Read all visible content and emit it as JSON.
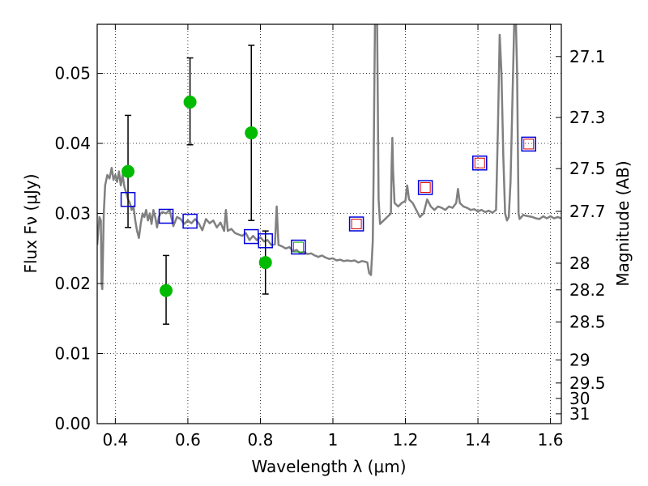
{
  "chart_data": {
    "type": "scatter",
    "xlabel": "Wavelength λ (μm)",
    "ylabel": "Flux Fν (μJy)",
    "y2label": "Magnitude (AB)",
    "xlim": [
      0.35,
      1.63
    ],
    "ylim": [
      0.0,
      0.057
    ],
    "grid": true,
    "x_ticks": [
      0.4,
      0.6,
      0.8,
      1.0,
      1.2,
      1.4,
      1.6
    ],
    "x_tick_labels": [
      "0.4",
      "0.6",
      "0.8",
      "1",
      "1.2",
      "1.4",
      "1.6"
    ],
    "y_ticks": [
      0.0,
      0.01,
      0.02,
      0.03,
      0.04,
      0.05
    ],
    "y_tick_labels": [
      "0.00",
      "0.01",
      "0.02",
      "0.03",
      "0.04",
      "0.05"
    ],
    "mag_ticks": [
      {
        "label": "27.1",
        "flux": 0.0524
      },
      {
        "label": "27.3",
        "flux": 0.0437
      },
      {
        "label": "27.5",
        "flux": 0.0364
      },
      {
        "label": "27.7",
        "flux": 0.0303
      },
      {
        "label": "28",
        "flux": 0.0229
      },
      {
        "label": "28.2",
        "flux": 0.0191
      },
      {
        "label": "28.5",
        "flux": 0.0145
      },
      {
        "label": "29",
        "flux": 0.0091
      },
      {
        "label": "29.5",
        "flux": 0.0058
      },
      {
        "label": "30",
        "flux": 0.0036
      },
      {
        "label": "31",
        "flux": 0.0014
      }
    ],
    "observed": {
      "color": "#00bb00",
      "points": [
        {
          "x": 0.435,
          "y": 0.036,
          "yerr_low": 0.028,
          "yerr_high": 0.044
        },
        {
          "x": 0.54,
          "y": 0.019,
          "yerr_low": 0.0142,
          "yerr_high": 0.024
        },
        {
          "x": 0.606,
          "y": 0.0459,
          "yerr_low": 0.0398,
          "yerr_high": 0.0522
        },
        {
          "x": 0.775,
          "y": 0.0415,
          "yerr_low": 0.029,
          "yerr_high": 0.054
        },
        {
          "x": 0.814,
          "y": 0.023,
          "yerr_low": 0.0185,
          "yerr_high": 0.0275
        }
      ]
    },
    "model_blue_boxes": {
      "color": "#0000dd",
      "points": [
        {
          "x": 0.435,
          "y": 0.032
        },
        {
          "x": 0.54,
          "y": 0.0296
        },
        {
          "x": 0.606,
          "y": 0.0289
        },
        {
          "x": 0.775,
          "y": 0.0267
        },
        {
          "x": 0.814,
          "y": 0.0261
        },
        {
          "x": 0.905,
          "y": 0.0252
        },
        {
          "x": 1.065,
          "y": 0.0285
        },
        {
          "x": 1.255,
          "y": 0.0337
        },
        {
          "x": 1.405,
          "y": 0.0372
        },
        {
          "x": 1.54,
          "y": 0.0399
        }
      ]
    },
    "model_inner_boxes": [
      {
        "x": 0.905,
        "y": 0.0252,
        "color": "#00aa00"
      },
      {
        "x": 1.065,
        "y": 0.0285,
        "color": "#dd0000"
      },
      {
        "x": 1.255,
        "y": 0.0337,
        "color": "#dd0000"
      },
      {
        "x": 1.405,
        "y": 0.0372,
        "color": "#dd0000"
      },
      {
        "x": 1.54,
        "y": 0.0399,
        "color": "#dd0000"
      }
    ],
    "model_spectrum": {
      "color": "#808080",
      "points": [
        [
          0.35,
          0.0255
        ],
        [
          0.356,
          0.0295
        ],
        [
          0.36,
          0.029
        ],
        [
          0.362,
          0.02
        ],
        [
          0.364,
          0.0192
        ],
        [
          0.368,
          0.03
        ],
        [
          0.372,
          0.034
        ],
        [
          0.378,
          0.0355
        ],
        [
          0.384,
          0.035
        ],
        [
          0.39,
          0.0365
        ],
        [
          0.395,
          0.0348
        ],
        [
          0.4,
          0.0355
        ],
        [
          0.405,
          0.0345
        ],
        [
          0.41,
          0.036
        ],
        [
          0.415,
          0.034
        ],
        [
          0.42,
          0.0355
        ],
        [
          0.425,
          0.0338
        ],
        [
          0.43,
          0.033
        ],
        [
          0.435,
          0.032
        ],
        [
          0.44,
          0.0315
        ],
        [
          0.445,
          0.0305
        ],
        [
          0.45,
          0.031
        ],
        [
          0.455,
          0.029
        ],
        [
          0.46,
          0.0275
        ],
        [
          0.465,
          0.0265
        ],
        [
          0.47,
          0.0285
        ],
        [
          0.475,
          0.03
        ],
        [
          0.48,
          0.0295
        ],
        [
          0.485,
          0.0305
        ],
        [
          0.49,
          0.029
        ],
        [
          0.495,
          0.03
        ],
        [
          0.5,
          0.0285
        ],
        [
          0.505,
          0.0305
        ],
        [
          0.51,
          0.0295
        ],
        [
          0.515,
          0.028
        ],
        [
          0.52,
          0.0295
        ],
        [
          0.525,
          0.03
        ],
        [
          0.53,
          0.0302
        ],
        [
          0.54,
          0.03
        ],
        [
          0.55,
          0.0305
        ],
        [
          0.56,
          0.0282
        ],
        [
          0.57,
          0.0295
        ],
        [
          0.58,
          0.0292
        ],
        [
          0.59,
          0.0285
        ],
        [
          0.6,
          0.029
        ],
        [
          0.61,
          0.0286
        ],
        [
          0.62,
          0.0292
        ],
        [
          0.63,
          0.0286
        ],
        [
          0.64,
          0.0276
        ],
        [
          0.65,
          0.0292
        ],
        [
          0.66,
          0.0286
        ],
        [
          0.67,
          0.029
        ],
        [
          0.68,
          0.028
        ],
        [
          0.69,
          0.0287
        ],
        [
          0.7,
          0.0275
        ],
        [
          0.705,
          0.0305
        ],
        [
          0.71,
          0.0275
        ],
        [
          0.72,
          0.0278
        ],
        [
          0.73,
          0.0272
        ],
        [
          0.74,
          0.027
        ],
        [
          0.75,
          0.0268
        ],
        [
          0.76,
          0.0272
        ],
        [
          0.77,
          0.0262
        ],
        [
          0.78,
          0.0268
        ],
        [
          0.79,
          0.0262
        ],
        [
          0.8,
          0.0266
        ],
        [
          0.81,
          0.026
        ],
        [
          0.82,
          0.0262
        ],
        [
          0.83,
          0.0255
        ],
        [
          0.84,
          0.0256
        ],
        [
          0.845,
          0.031
        ],
        [
          0.85,
          0.0255
        ],
        [
          0.86,
          0.0253
        ],
        [
          0.87,
          0.025
        ],
        [
          0.88,
          0.0252
        ],
        [
          0.89,
          0.0246
        ],
        [
          0.9,
          0.0248
        ],
        [
          0.91,
          0.0243
        ],
        [
          0.92,
          0.0245
        ],
        [
          0.93,
          0.0242
        ],
        [
          0.94,
          0.0243
        ],
        [
          0.95,
          0.024
        ],
        [
          0.96,
          0.0238
        ],
        [
          0.97,
          0.024
        ],
        [
          0.98,
          0.0237
        ],
        [
          0.99,
          0.0235
        ],
        [
          1.0,
          0.0236
        ],
        [
          1.01,
          0.0233
        ],
        [
          1.02,
          0.0234
        ],
        [
          1.03,
          0.0232
        ],
        [
          1.04,
          0.0233
        ],
        [
          1.05,
          0.0232
        ],
        [
          1.06,
          0.0233
        ],
        [
          1.07,
          0.023
        ],
        [
          1.08,
          0.0232
        ],
        [
          1.09,
          0.0231
        ],
        [
          1.095,
          0.023
        ],
        [
          1.1,
          0.0215
        ],
        [
          1.105,
          0.0212
        ],
        [
          1.108,
          0.024
        ],
        [
          1.11,
          0.026
        ],
        [
          1.112,
          0.034
        ],
        [
          1.114,
          0.046
        ],
        [
          1.116,
          0.057
        ],
        [
          1.122,
          0.057
        ],
        [
          1.124,
          0.045
        ],
        [
          1.126,
          0.032
        ],
        [
          1.13,
          0.0285
        ],
        [
          1.14,
          0.029
        ],
        [
          1.15,
          0.0295
        ],
        [
          1.16,
          0.03
        ],
        [
          1.162,
          0.037
        ],
        [
          1.164,
          0.0408
        ],
        [
          1.166,
          0.036
        ],
        [
          1.17,
          0.0315
        ],
        [
          1.18,
          0.031
        ],
        [
          1.19,
          0.0315
        ],
        [
          1.2,
          0.0318
        ],
        [
          1.205,
          0.034
        ],
        [
          1.21,
          0.032
        ],
        [
          1.22,
          0.0315
        ],
        [
          1.23,
          0.0305
        ],
        [
          1.24,
          0.0295
        ],
        [
          1.25,
          0.03
        ],
        [
          1.26,
          0.032
        ],
        [
          1.27,
          0.031
        ],
        [
          1.28,
          0.0305
        ],
        [
          1.29,
          0.031
        ],
        [
          1.3,
          0.0308
        ],
        [
          1.31,
          0.0305
        ],
        [
          1.32,
          0.031
        ],
        [
          1.33,
          0.0308
        ],
        [
          1.34,
          0.0315
        ],
        [
          1.345,
          0.0335
        ],
        [
          1.35,
          0.0315
        ],
        [
          1.36,
          0.031
        ],
        [
          1.37,
          0.0308
        ],
        [
          1.38,
          0.0305
        ],
        [
          1.39,
          0.0306
        ],
        [
          1.4,
          0.0303
        ],
        [
          1.41,
          0.0305
        ],
        [
          1.42,
          0.0302
        ],
        [
          1.43,
          0.0304
        ],
        [
          1.44,
          0.0301
        ],
        [
          1.45,
          0.0305
        ],
        [
          1.455,
          0.042
        ],
        [
          1.46,
          0.0555
        ],
        [
          1.465,
          0.05
        ],
        [
          1.47,
          0.038
        ],
        [
          1.475,
          0.03
        ],
        [
          1.48,
          0.029
        ],
        [
          1.485,
          0.0295
        ],
        [
          1.49,
          0.0345
        ],
        [
          1.495,
          0.046
        ],
        [
          1.5,
          0.057
        ],
        [
          1.505,
          0.057
        ],
        [
          1.508,
          0.05
        ],
        [
          1.51,
          0.04
        ],
        [
          1.512,
          0.03
        ],
        [
          1.515,
          0.0292
        ],
        [
          1.52,
          0.0295
        ],
        [
          1.525,
          0.0298
        ],
        [
          1.53,
          0.0297
        ],
        [
          1.54,
          0.0296
        ],
        [
          1.55,
          0.0295
        ],
        [
          1.56,
          0.0293
        ],
        [
          1.57,
          0.0292
        ],
        [
          1.58,
          0.0296
        ],
        [
          1.59,
          0.0293
        ],
        [
          1.6,
          0.0296
        ],
        [
          1.61,
          0.0293
        ],
        [
          1.62,
          0.0295
        ],
        [
          1.63,
          0.0293
        ]
      ]
    }
  }
}
